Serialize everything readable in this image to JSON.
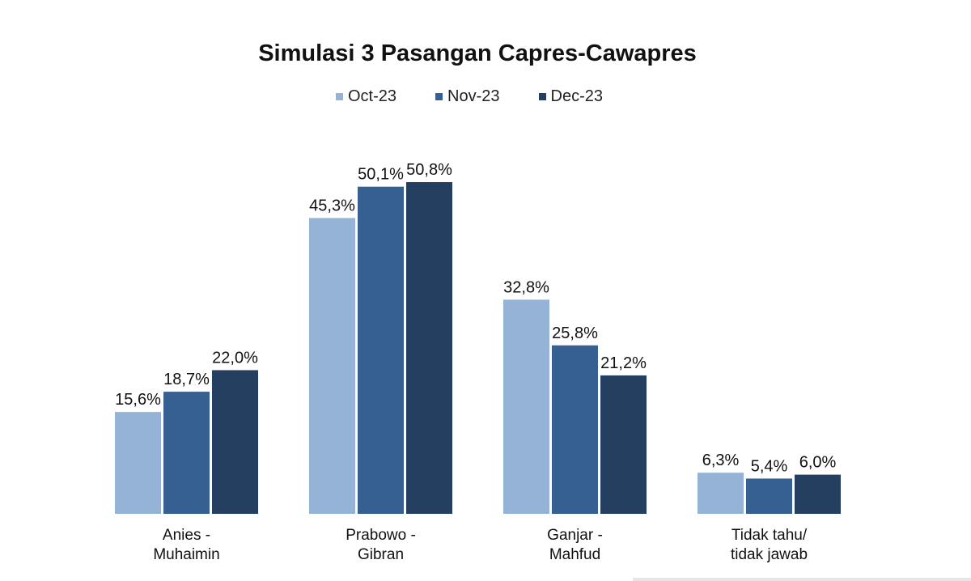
{
  "chart_data": {
    "type": "bar",
    "title": "Simulasi 3 Pasangan Capres-Cawapres",
    "categories": [
      [
        "Anies -",
        "Muhaimin"
      ],
      [
        "Prabowo -",
        "Gibran"
      ],
      [
        "Ganjar -",
        "Mahfud"
      ],
      [
        "Tidak tahu/",
        "tidak jawab"
      ]
    ],
    "series": [
      {
        "name": "Oct-23",
        "color": "#95b3d7",
        "values": [
          15.6,
          45.3,
          32.8,
          6.3
        ],
        "labels": [
          "15,6%",
          "45,3%",
          "32,8%",
          "6,3%"
        ]
      },
      {
        "name": "Nov-23",
        "color": "#376092",
        "values": [
          18.7,
          50.1,
          25.8,
          5.4
        ],
        "labels": [
          "18,7%",
          "50,1%",
          "25,8%",
          "5,4%"
        ]
      },
      {
        "name": "Dec-23",
        "color": "#243f60",
        "values": [
          22.0,
          50.8,
          21.2,
          6.0
        ],
        "labels": [
          "22,0%",
          "50,8%",
          "21,2%",
          "6,0%"
        ]
      }
    ],
    "ylim": [
      0,
      50.8
    ],
    "grid": false,
    "legend_position": "top"
  }
}
